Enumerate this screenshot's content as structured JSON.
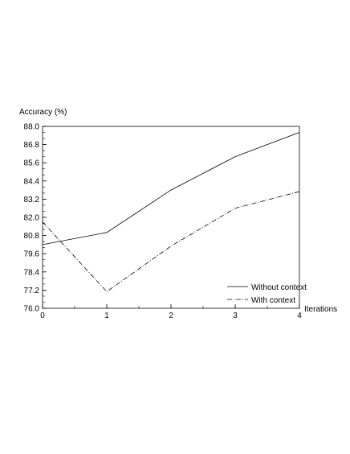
{
  "chart_data": {
    "type": "line",
    "title": "",
    "xlabel": "Iterations",
    "ylabel": "Accuracy (%)",
    "x": [
      0,
      1,
      2,
      3,
      4
    ],
    "xticks": [
      "0",
      "1",
      "2",
      "3",
      "4"
    ],
    "xlim": [
      0,
      4
    ],
    "ylim": [
      76.0,
      88.0
    ],
    "yticks": [
      "76.0",
      "77.2",
      "78.4",
      "79.6",
      "80.8",
      "82.0",
      "83.2",
      "84.4",
      "85.6",
      "86.8",
      "88.0"
    ],
    "grid": false,
    "legend_position": "bottom-right",
    "series": [
      {
        "name": "Without context",
        "values": [
          80.2,
          81.0,
          83.8,
          86.0,
          87.6
        ],
        "line_style": "solid",
        "color": "#000000"
      },
      {
        "name": "With context",
        "values": [
          81.7,
          77.1,
          80.1,
          82.6,
          83.7
        ],
        "line_style": "dash-dot",
        "color": "#000000"
      }
    ]
  }
}
